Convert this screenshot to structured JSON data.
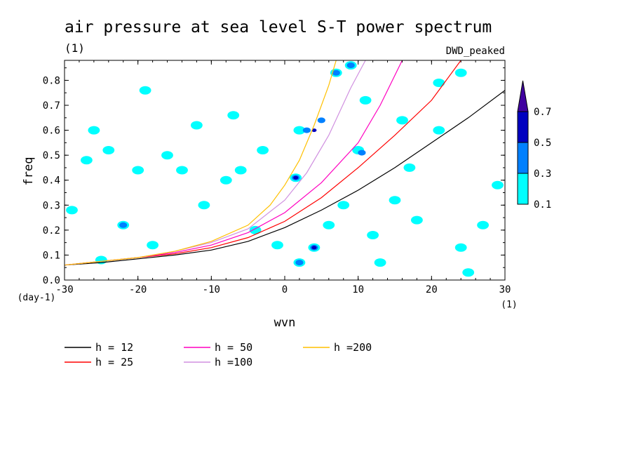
{
  "chart_data": {
    "type": "heatmap",
    "title": "air pressure at sea level S-T power spectrum",
    "title_units": "(1)",
    "source_label": "DWD_peaked",
    "xlabel": "wvn",
    "x_units": "(1)",
    "ylabel": "freq",
    "y_units": "(day-1)",
    "xlim": [
      -30,
      30
    ],
    "ylim": [
      0,
      0.88
    ],
    "x_ticks": [
      {
        "value": -30,
        "label": "-30"
      },
      {
        "value": -20,
        "label": "-20"
      },
      {
        "value": -10,
        "label": "-10"
      },
      {
        "value": 0,
        "label": "0"
      },
      {
        "value": 10,
        "label": "10"
      },
      {
        "value": 20,
        "label": "20"
      },
      {
        "value": 30,
        "label": "30"
      }
    ],
    "y_ticks": [
      {
        "value": 0.0,
        "label": "0.0"
      },
      {
        "value": 0.1,
        "label": "0.1"
      },
      {
        "value": 0.2,
        "label": "0.2"
      },
      {
        "value": 0.3,
        "label": "0.3"
      },
      {
        "value": 0.4,
        "label": "0.4"
      },
      {
        "value": 0.5,
        "label": "0.5"
      },
      {
        "value": 0.6,
        "label": "0.6"
      },
      {
        "value": 0.7,
        "label": "0.7"
      },
      {
        "value": 0.8,
        "label": "0.8"
      }
    ],
    "grid": false,
    "legend_position": "bottom",
    "colorbar": {
      "levels": [
        "0.1",
        "0.3",
        "0.5",
        "0.7"
      ],
      "colors": [
        "#00ffff",
        "#0080ff",
        "#0000c0",
        "#4000a0"
      ]
    },
    "dispersion_curves": [
      {
        "name": "h = 12",
        "color": "#000000",
        "points": [
          [
            -30,
            0.06
          ],
          [
            -25,
            0.07
          ],
          [
            -20,
            0.085
          ],
          [
            -15,
            0.1
          ],
          [
            -10,
            0.12
          ],
          [
            -5,
            0.155
          ],
          [
            0,
            0.21
          ],
          [
            5,
            0.28
          ],
          [
            10,
            0.36
          ],
          [
            15,
            0.45
          ],
          [
            20,
            0.55
          ],
          [
            25,
            0.65
          ],
          [
            30,
            0.76
          ]
        ]
      },
      {
        "name": "h = 25",
        "color": "#ff0000",
        "points": [
          [
            -30,
            0.06
          ],
          [
            -25,
            0.075
          ],
          [
            -20,
            0.09
          ],
          [
            -15,
            0.105
          ],
          [
            -10,
            0.13
          ],
          [
            -5,
            0.17
          ],
          [
            0,
            0.235
          ],
          [
            5,
            0.33
          ],
          [
            10,
            0.45
          ],
          [
            15,
            0.58
          ],
          [
            20,
            0.72
          ],
          [
            24,
            0.88
          ]
        ]
      },
      {
        "name": "h = 50",
        "color": "#ff00c0",
        "points": [
          [
            -30,
            0.06
          ],
          [
            -25,
            0.075
          ],
          [
            -20,
            0.09
          ],
          [
            -15,
            0.11
          ],
          [
            -10,
            0.14
          ],
          [
            -5,
            0.19
          ],
          [
            0,
            0.27
          ],
          [
            5,
            0.39
          ],
          [
            10,
            0.55
          ],
          [
            13,
            0.7
          ],
          [
            16,
            0.88
          ]
        ]
      },
      {
        "name": "h =100",
        "color": "#d090e0",
        "points": [
          [
            -30,
            0.06
          ],
          [
            -25,
            0.075
          ],
          [
            -20,
            0.09
          ],
          [
            -15,
            0.115
          ],
          [
            -10,
            0.15
          ],
          [
            -5,
            0.205
          ],
          [
            0,
            0.32
          ],
          [
            3,
            0.43
          ],
          [
            6,
            0.58
          ],
          [
            9,
            0.77
          ],
          [
            11,
            0.88
          ]
        ]
      },
      {
        "name": "h =200",
        "color": "#ffc000",
        "points": [
          [
            -30,
            0.06
          ],
          [
            -25,
            0.075
          ],
          [
            -20,
            0.09
          ],
          [
            -15,
            0.115
          ],
          [
            -10,
            0.155
          ],
          [
            -5,
            0.22
          ],
          [
            -2,
            0.3
          ],
          [
            0,
            0.38
          ],
          [
            2,
            0.48
          ],
          [
            4,
            0.62
          ],
          [
            6,
            0.78
          ],
          [
            7,
            0.88
          ]
        ]
      }
    ],
    "contour_patches": [
      {
        "x": -24,
        "y": 0.52,
        "level": 0.1
      },
      {
        "x": -27,
        "y": 0.48,
        "level": 0.1
      },
      {
        "x": -16,
        "y": 0.5,
        "level": 0.1
      },
      {
        "x": -14,
        "y": 0.44,
        "level": 0.1
      },
      {
        "x": -20,
        "y": 0.44,
        "level": 0.1
      },
      {
        "x": -8,
        "y": 0.4,
        "level": 0.1
      },
      {
        "x": -6,
        "y": 0.44,
        "level": 0.1
      },
      {
        "x": -22,
        "y": 0.22,
        "level": 0.1
      },
      {
        "x": -22,
        "y": 0.22,
        "level": 0.3
      },
      {
        "x": -19,
        "y": 0.76,
        "level": 0.1
      },
      {
        "x": -26,
        "y": 0.6,
        "level": 0.1
      },
      {
        "x": -7,
        "y": 0.66,
        "level": 0.1
      },
      {
        "x": -12,
        "y": 0.62,
        "level": 0.1
      },
      {
        "x": -4,
        "y": 0.2,
        "level": 0.1
      },
      {
        "x": -18,
        "y": 0.14,
        "level": 0.1
      },
      {
        "x": -29,
        "y": 0.28,
        "level": 0.1
      },
      {
        "x": 2,
        "y": 0.6,
        "level": 0.1
      },
      {
        "x": 3,
        "y": 0.6,
        "level": 0.3
      },
      {
        "x": 4,
        "y": 0.6,
        "level": 0.5
      },
      {
        "x": 5,
        "y": 0.64,
        "level": 0.3
      },
      {
        "x": 1.5,
        "y": 0.41,
        "level": 0.1
      },
      {
        "x": 1.5,
        "y": 0.41,
        "level": 0.3
      },
      {
        "x": 1.5,
        "y": 0.41,
        "level": 0.5
      },
      {
        "x": 4,
        "y": 0.13,
        "level": 0.1
      },
      {
        "x": 4,
        "y": 0.13,
        "level": 0.3
      },
      {
        "x": 4,
        "y": 0.13,
        "level": 0.5
      },
      {
        "x": 2,
        "y": 0.07,
        "level": 0.1
      },
      {
        "x": 2,
        "y": 0.07,
        "level": 0.3
      },
      {
        "x": 8,
        "y": 0.3,
        "level": 0.1
      },
      {
        "x": 10,
        "y": 0.52,
        "level": 0.1
      },
      {
        "x": 10.5,
        "y": 0.51,
        "level": 0.3
      },
      {
        "x": 11,
        "y": 0.72,
        "level": 0.1
      },
      {
        "x": 9,
        "y": 0.86,
        "level": 0.1
      },
      {
        "x": 9,
        "y": 0.86,
        "level": 0.3
      },
      {
        "x": 7,
        "y": 0.83,
        "level": 0.1
      },
      {
        "x": 7,
        "y": 0.83,
        "level": 0.3
      },
      {
        "x": 12,
        "y": 0.18,
        "level": 0.1
      },
      {
        "x": 15,
        "y": 0.32,
        "level": 0.1
      },
      {
        "x": 17,
        "y": 0.45,
        "level": 0.1
      },
      {
        "x": 21,
        "y": 0.79,
        "level": 0.1
      },
      {
        "x": 24,
        "y": 0.83,
        "level": 0.1
      },
      {
        "x": 24,
        "y": 0.13,
        "level": 0.1
      },
      {
        "x": 27,
        "y": 0.22,
        "level": 0.1
      },
      {
        "x": 25,
        "y": 0.03,
        "level": 0.1
      },
      {
        "x": 29,
        "y": 0.38,
        "level": 0.1
      },
      {
        "x": 21,
        "y": 0.6,
        "level": 0.1
      },
      {
        "x": 16,
        "y": 0.64,
        "level": 0.1
      },
      {
        "x": -1,
        "y": 0.14,
        "level": 0.1
      },
      {
        "x": 6,
        "y": 0.22,
        "level": 0.1
      },
      {
        "x": 13,
        "y": 0.07,
        "level": 0.1
      },
      {
        "x": -11,
        "y": 0.3,
        "level": 0.1
      },
      {
        "x": -25,
        "y": 0.08,
        "level": 0.1
      },
      {
        "x": -3,
        "y": 0.52,
        "level": 0.1
      },
      {
        "x": 18,
        "y": 0.24,
        "level": 0.1
      }
    ]
  }
}
